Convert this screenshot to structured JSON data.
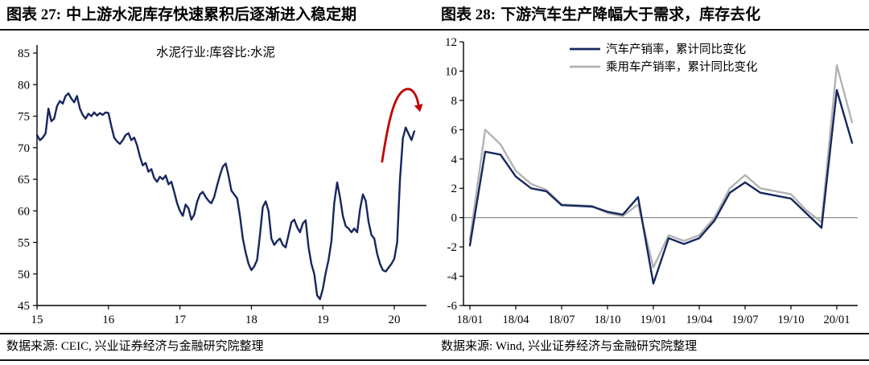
{
  "page": {
    "left": {
      "figure_label": "图表 27:",
      "figure_title": "中上游水泥库存快速累积后逐渐进入稳定期",
      "source": "数据来源: CEIC, 兴业证券经济与金融研究院整理"
    },
    "right": {
      "figure_label": "图表 28:",
      "figure_title": "下游汽车生产降幅大于需求，库存去化",
      "source": "数据来源: Wind, 兴业证券经济与金融研究院整理"
    }
  },
  "chart_data": [
    {
      "type": "line",
      "title": "水泥行业:库容比:水泥",
      "series_name": "水泥行业:库容比:水泥",
      "color": "#17265e",
      "xlim": [
        2015.0,
        2020.45
      ],
      "ylim": [
        45,
        85
      ],
      "yticks": [
        45,
        50,
        55,
        60,
        65,
        70,
        75,
        80,
        85
      ],
      "xticks": [
        2015,
        2016,
        2017,
        2018,
        2019,
        2020
      ],
      "xtick_labels": [
        "15",
        "16",
        "17",
        "18",
        "19",
        "20"
      ],
      "grid": false,
      "x_start": 2015.0,
      "x_step": 0.04,
      "values": [
        72.0,
        71.2,
        71.6,
        72.3,
        76.2,
        74.2,
        74.6,
        76.6,
        77.4,
        77.0,
        78.2,
        78.6,
        77.8,
        77.2,
        78.2,
        76.2,
        75.2,
        74.6,
        75.4,
        75.0,
        75.6,
        75.1,
        75.5,
        75.2,
        75.6,
        75.5,
        73.4,
        71.6,
        71.0,
        70.6,
        71.2,
        72.0,
        72.3,
        71.2,
        71.6,
        70.4,
        68.6,
        67.2,
        67.6,
        66.2,
        66.6,
        65.2,
        64.6,
        65.4,
        65.0,
        65.6,
        64.2,
        64.6,
        63.0,
        61.2,
        60.0,
        59.2,
        61.0,
        60.4,
        58.6,
        59.4,
        61.4,
        62.6,
        63.0,
        62.2,
        61.6,
        61.2,
        62.2,
        64.0,
        65.6,
        67.0,
        67.5,
        65.6,
        63.2,
        62.6,
        62.0,
        59.2,
        55.6,
        53.4,
        51.6,
        50.6,
        51.2,
        52.2,
        56.2,
        60.6,
        61.5,
        60.0,
        55.6,
        54.6,
        55.2,
        55.6,
        54.6,
        54.2,
        56.2,
        58.2,
        58.6,
        57.4,
        56.6,
        58.0,
        58.5,
        54.2,
        51.6,
        50.0,
        46.6,
        46.0,
        47.6,
        50.2,
        52.2,
        55.2,
        61.2,
        64.5,
        62.2,
        59.2,
        57.6,
        57.2,
        56.6,
        57.2,
        56.6,
        60.2,
        62.6,
        61.6,
        58.2,
        56.2,
        55.6,
        53.2,
        51.6,
        50.6,
        50.4,
        51.0,
        51.6,
        52.4,
        55.0,
        65.0,
        71.5,
        73.2,
        72.2,
        71.2,
        72.6
      ],
      "annotation": {
        "type": "arrow",
        "color": "#c00000",
        "note": "rapid inventory build-up then stabilization hook",
        "points_xy": [
          [
            2019.83,
            67.8
          ],
          [
            2019.92,
            74.5
          ],
          [
            2020.0,
            78.0
          ],
          [
            2020.12,
            79.0
          ],
          [
            2020.22,
            79.8
          ],
          [
            2020.3,
            79.0
          ],
          [
            2020.34,
            76.8
          ]
        ]
      }
    },
    {
      "type": "line",
      "categories": [
        "18/01",
        "18/02",
        "18/03",
        "18/04",
        "18/05",
        "18/06",
        "18/07",
        "18/08",
        "18/09",
        "18/10",
        "18/11",
        "18/12",
        "19/01",
        "19/02",
        "19/03",
        "19/04",
        "19/05",
        "19/06",
        "19/07",
        "19/08",
        "19/09",
        "19/10",
        "19/11",
        "19/12",
        "20/01",
        "20/02"
      ],
      "series": [
        {
          "name": "汽车产销率，累计同比变化",
          "color": "#17265e",
          "values": [
            -1.9,
            4.5,
            4.3,
            2.8,
            2.0,
            1.8,
            0.85,
            0.8,
            0.75,
            0.4,
            0.2,
            1.4,
            -4.5,
            -1.4,
            -1.8,
            -1.4,
            -0.2,
            1.7,
            2.4,
            1.7,
            1.5,
            1.3,
            0.3,
            -0.7,
            8.7,
            5.1
          ]
        },
        {
          "name": "乘用车产销率，累计同比变化",
          "color": "#b3b3b3",
          "values": [
            -1.5,
            6.0,
            5.0,
            3.2,
            2.3,
            1.9,
            0.9,
            0.85,
            0.8,
            0.3,
            0.1,
            0.9,
            -3.4,
            -1.2,
            -1.6,
            -1.2,
            0.0,
            2.0,
            2.9,
            2.0,
            1.8,
            1.6,
            0.5,
            -0.3,
            10.4,
            6.5
          ]
        }
      ],
      "ylim": [
        -6,
        12
      ],
      "yticks": [
        -6,
        -4,
        -2,
        0,
        2,
        4,
        6,
        8,
        10,
        12
      ],
      "xtick_labels": [
        "18/01",
        "18/04",
        "18/07",
        "18/10",
        "19/01",
        "19/04",
        "19/07",
        "19/10",
        "20/01"
      ],
      "xtick_indices": [
        0,
        3,
        6,
        9,
        12,
        15,
        18,
        21,
        24
      ],
      "zero_line_color": "#808080",
      "legend_position": "top",
      "grid": false
    }
  ]
}
